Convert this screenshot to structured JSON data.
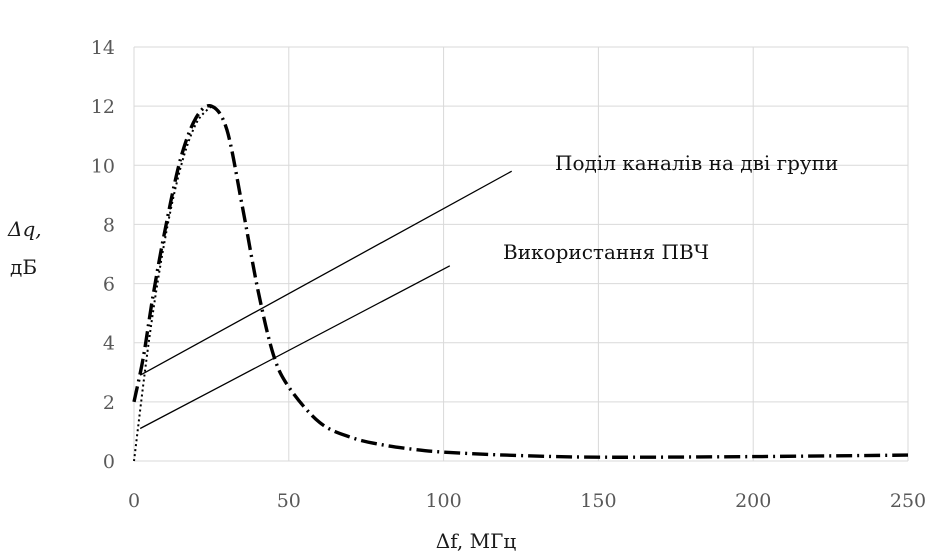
{
  "chart_data": {
    "type": "line",
    "xlabel": "Δf, МГц",
    "ylabel": "Δq,",
    "ylabel_unit": "дБ",
    "xlim": [
      0,
      250
    ],
    "ylim": [
      0,
      14
    ],
    "x_ticks": [
      0,
      50,
      100,
      150,
      200,
      250
    ],
    "y_ticks": [
      0,
      2,
      4,
      6,
      8,
      10,
      12,
      14
    ],
    "grid": "on",
    "legend": "none",
    "series": [
      {
        "style": "long-dash",
        "color": "#000000",
        "x": [
          0,
          3,
          6,
          10,
          15,
          20,
          25,
          30,
          35,
          40,
          45,
          50,
          60,
          70,
          80,
          90,
          100,
          120,
          150,
          200,
          250
        ],
        "y": [
          2.0,
          3.5,
          5.5,
          7.8,
          10.2,
          11.6,
          12.0,
          11.2,
          8.6,
          5.8,
          3.6,
          2.5,
          1.3,
          0.8,
          0.55,
          0.4,
          0.3,
          0.2,
          0.13,
          0.15,
          0.2
        ]
      },
      {
        "style": "dotted",
        "color": "#000000",
        "x": [
          0,
          5,
          10,
          15,
          20,
          25
        ],
        "y": [
          0.0,
          4.2,
          7.5,
          9.9,
          11.4,
          12.0
        ]
      },
      {
        "name": "Поділ каналів на дві групи",
        "style": "solid",
        "color": "#000000",
        "x": [
          2,
          122
        ],
        "y": [
          2.9,
          9.8
        ]
      },
      {
        "name": "Використання ПВЧ",
        "style": "solid",
        "color": "#000000",
        "x": [
          2,
          102
        ],
        "y": [
          1.1,
          6.6
        ]
      }
    ],
    "annotations": [
      "Поділ каналів на дві групи",
      "Використання ПВЧ"
    ]
  }
}
